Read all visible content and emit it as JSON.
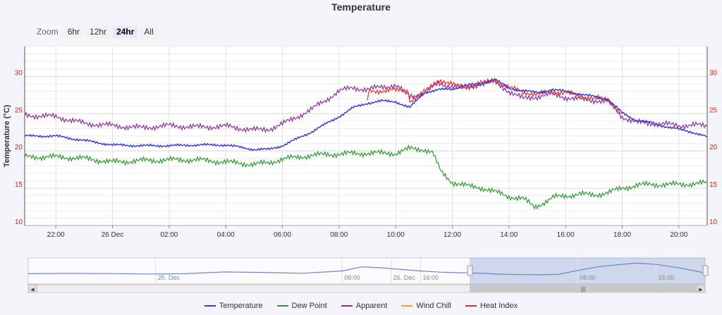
{
  "chart_data": {
    "type": "line",
    "title": "Temperature",
    "ylabel": "Temperature (°C)",
    "ylim": [
      10,
      34
    ],
    "xlim": [
      20.9,
      45
    ],
    "x_unit": "hours from 00:00 on 25 Dec",
    "x_ticks": [
      {
        "x": 22,
        "label": "22:00"
      },
      {
        "x": 24,
        "label": "26 Dec"
      },
      {
        "x": 26,
        "label": "02:00"
      },
      {
        "x": 28,
        "label": "04:00"
      },
      {
        "x": 30,
        "label": "06:00"
      },
      {
        "x": 32,
        "label": "08:00"
      },
      {
        "x": 34,
        "label": "10:00"
      },
      {
        "x": 36,
        "label": "12:00"
      },
      {
        "x": 38,
        "label": "14:00"
      },
      {
        "x": 40,
        "label": "16:00"
      },
      {
        "x": 42,
        "label": "18:00"
      },
      {
        "x": 44,
        "label": "20:00"
      }
    ],
    "y_ticks": [
      10,
      15,
      20,
      25,
      30
    ],
    "grid": true,
    "legend_position": "bottom",
    "series": [
      {
        "name": "Temperature",
        "color": "#3b3bd1",
        "x": [
          20.9,
          22.0,
          23.0,
          24.0,
          25.0,
          26.0,
          27.0,
          28.0,
          29.0,
          29.5,
          30.0,
          31.0,
          32.0,
          32.5,
          33.0,
          33.5,
          34.0,
          34.5,
          35.0,
          35.5,
          36.0,
          36.5,
          37.0,
          37.5,
          38.0,
          38.5,
          39.0,
          39.5,
          40.0,
          40.5,
          41.0,
          41.5,
          42.0,
          42.5,
          43.0,
          43.5,
          44.0,
          44.5,
          45.0
        ],
        "y": [
          22.0,
          22.0,
          21.4,
          20.8,
          20.7,
          20.7,
          20.8,
          20.8,
          20.2,
          20.2,
          20.7,
          22.5,
          24.6,
          25.8,
          26.4,
          26.7,
          26.6,
          25.8,
          27.8,
          28.2,
          28.3,
          28.8,
          29.0,
          29.6,
          28.4,
          28.1,
          27.8,
          28.2,
          28.0,
          27.6,
          27.3,
          26.9,
          25.1,
          24.1,
          23.8,
          23.3,
          22.9,
          22.5,
          21.9
        ]
      },
      {
        "name": "Dew Point",
        "color": "#2e9a2e",
        "x": [
          20.9,
          22.0,
          23.0,
          24.0,
          25.0,
          26.0,
          27.0,
          28.0,
          29.0,
          29.5,
          30.0,
          31.0,
          32.0,
          33.0,
          34.0,
          34.5,
          35.0,
          35.3,
          35.6,
          36.0,
          36.5,
          37.0,
          37.5,
          38.0,
          38.5,
          38.9,
          39.2,
          39.6,
          40.0,
          40.5,
          41.0,
          41.5,
          42.0,
          42.5,
          43.0,
          43.5,
          44.0,
          44.5,
          45.0
        ],
        "y": [
          19.2,
          19.2,
          19.0,
          18.5,
          18.7,
          18.8,
          18.8,
          18.5,
          18.2,
          18.4,
          18.9,
          19.4,
          19.6,
          19.7,
          19.7,
          20.3,
          20.2,
          19.8,
          17.2,
          15.8,
          15.3,
          15.1,
          14.5,
          13.9,
          13.6,
          12.5,
          13.0,
          13.8,
          14.0,
          14.2,
          14.1,
          14.4,
          15.0,
          15.4,
          15.5,
          15.5,
          15.5,
          15.6,
          15.7
        ]
      },
      {
        "name": "Apparent",
        "color": "#8e2f9e",
        "x": [
          20.9,
          22.0,
          23.0,
          24.0,
          25.0,
          26.0,
          27.0,
          28.0,
          29.0,
          29.5,
          30.0,
          31.0,
          32.0,
          32.5,
          33.0,
          33.5,
          34.0,
          34.5,
          35.0,
          35.5,
          36.0,
          36.5,
          37.0,
          37.5,
          38.0,
          38.5,
          39.0,
          39.5,
          40.0,
          40.5,
          41.0,
          41.5,
          42.0,
          42.5,
          43.0,
          43.5,
          44.0,
          44.5,
          45.0
        ],
        "y": [
          24.8,
          24.6,
          23.7,
          23.4,
          23.1,
          23.4,
          23.2,
          23.3,
          22.8,
          22.9,
          23.6,
          25.5,
          28.0,
          28.5,
          28.2,
          28.6,
          28.8,
          27.3,
          27.7,
          29.0,
          28.7,
          28.5,
          29.0,
          29.3,
          28.0,
          27.0,
          27.3,
          27.6,
          27.2,
          26.9,
          26.8,
          26.6,
          24.6,
          23.8,
          23.7,
          23.6,
          23.4,
          23.5,
          23.3
        ]
      },
      {
        "name": "Wind Chill",
        "color": "#f0a030",
        "x": [],
        "y": []
      },
      {
        "name": "Heat Index",
        "color": "#e03030",
        "x": [
          33.0,
          33.05,
          33.5,
          34.0,
          34.45,
          34.5,
          35.0,
          35.5,
          36.0,
          36.5,
          37.0,
          37.5,
          38.0,
          38.5,
          39.0,
          39.5,
          40.0,
          40.5,
          41.0,
          41.5,
          42.0
        ],
        "y": [
          26.4,
          28.0,
          28.1,
          28.1,
          28.1,
          26.7,
          27.8,
          29.6,
          28.8,
          28.6,
          29.0,
          29.5,
          28.4,
          28.0,
          27.5,
          28.0,
          27.8,
          27.4,
          27.1,
          26.8,
          25.0
        ]
      }
    ],
    "navigator": {
      "labels": [
        {
          "x": 13,
          "label": "25. Dec"
        },
        {
          "x": 32,
          "label": "08:00"
        },
        {
          "x": 40,
          "label": "16:00"
        },
        {
          "x": 37,
          "label": "26. Dec"
        },
        {
          "x": 56,
          "label": "08:00"
        },
        {
          "x": 64,
          "label": "16:00"
        }
      ],
      "xlim": [
        0,
        69
      ],
      "selected_range": [
        45,
        69
      ],
      "x": [
        0,
        4,
        8,
        12,
        16,
        20,
        24,
        28,
        32,
        34,
        36,
        38,
        40,
        42,
        44,
        46,
        48,
        50,
        52,
        54,
        56,
        58,
        60,
        62,
        64,
        66,
        68,
        69
      ],
      "y": [
        21.5,
        21.7,
        21.6,
        21.3,
        21.5,
        22.8,
        22.4,
        21.8,
        23.5,
        26.5,
        25.8,
        24.6,
        23.5,
        22.6,
        22.2,
        21.9,
        21.2,
        20.8,
        20.7,
        21.0,
        23.8,
        26.5,
        28.0,
        29.2,
        28.3,
        26.2,
        23.5,
        21.9
      ]
    }
  },
  "ui": {
    "zoom_label": "Zoom",
    "zoom_buttons": [
      "6hr",
      "12hr",
      "24hr",
      "All"
    ],
    "zoom_active": "24hr",
    "scroll_left_arrow": "◀",
    "scroll_right_arrow": "▶",
    "scroll_grip": "|||"
  }
}
